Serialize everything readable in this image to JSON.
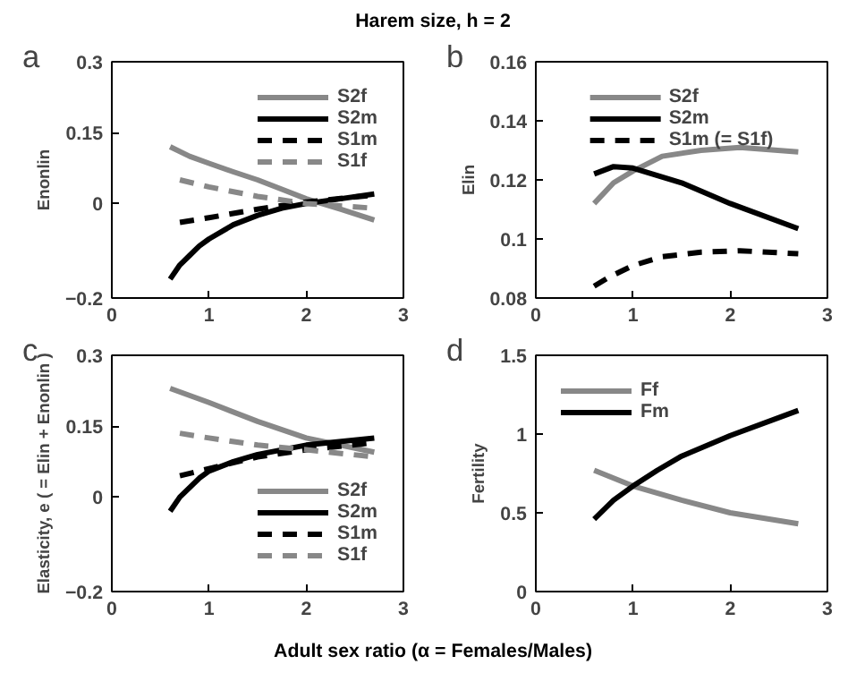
{
  "chart_data": [
    {
      "type": "line",
      "title": "Harem size, h = 2",
      "ylabel": "Enonlin",
      "annotations": [
        "a"
      ],
      "xlim": [
        0,
        3
      ],
      "xticks": [
        0,
        1,
        2,
        3
      ],
      "ylim": [
        -0.2,
        0.3
      ],
      "yticks": [
        -0.2,
        0,
        0.15,
        0.3
      ],
      "grid": false,
      "legend": "top right",
      "series": [
        {
          "name": "S2f",
          "color": "#888888",
          "x": [
            0.6,
            0.8,
            1,
            1.25,
            1.5,
            1.75,
            2,
            2.35,
            2.7
          ],
          "values": [
            0.12,
            0.1,
            0.085,
            0.067,
            0.05,
            0.03,
            0.01,
            -0.012,
            -0.035
          ]
        },
        {
          "name": "S2m",
          "color": "#000000",
          "x": [
            0.6,
            0.7,
            0.8,
            0.9,
            1,
            1.25,
            1.5,
            1.75,
            2,
            2.35,
            2.7
          ],
          "values": [
            -0.16,
            -0.13,
            -0.11,
            -0.09,
            -0.075,
            -0.045,
            -0.025,
            -0.01,
            0.0,
            0.01,
            0.02
          ]
        },
        {
          "name": "S1m",
          "color": "#000000",
          "line_style": "dashed",
          "x": [
            0.7,
            1,
            1.5,
            2,
            2.7
          ],
          "values": [
            -0.04,
            -0.03,
            -0.012,
            0.003,
            0.018
          ]
        },
        {
          "name": "S1f",
          "color": "#888888",
          "line_style": "dashed",
          "x": [
            0.7,
            1,
            1.5,
            2,
            2.7
          ],
          "values": [
            0.05,
            0.035,
            0.015,
            0.0,
            -0.01
          ]
        }
      ]
    },
    {
      "type": "line",
      "ylabel": "Elin",
      "annotations": [
        "b"
      ],
      "xlim": [
        0,
        3
      ],
      "xticks": [
        0,
        1,
        2,
        3
      ],
      "ylim": [
        0.08,
        0.16
      ],
      "yticks": [
        0.08,
        0.1,
        0.12,
        0.14,
        0.16
      ],
      "grid": false,
      "legend": "top",
      "series": [
        {
          "name": "S2f",
          "color": "#888888",
          "x": [
            0.6,
            0.8,
            1,
            1.3,
            1.7,
            2.1,
            2.7
          ],
          "values": [
            0.112,
            0.119,
            0.123,
            0.128,
            0.13,
            0.131,
            0.1295
          ]
        },
        {
          "name": "S2m",
          "color": "#000000",
          "x": [
            0.6,
            0.8,
            1,
            1.5,
            2,
            2.7
          ],
          "values": [
            0.122,
            0.1245,
            0.124,
            0.119,
            0.112,
            0.1035
          ]
        },
        {
          "name": "S1m (= S1f)",
          "color": "#000000",
          "line_style": "dashed",
          "x": [
            0.6,
            0.75,
            1,
            1.3,
            1.7,
            2.1,
            2.7
          ],
          "values": [
            0.084,
            0.087,
            0.091,
            0.094,
            0.0955,
            0.096,
            0.095
          ]
        }
      ]
    },
    {
      "type": "line",
      "ylabel": "Elasticity, e ( = Elin + Enonlin )",
      "xlabel": "Adult sex ratio (α = Females/Males)",
      "annotations": [
        "c"
      ],
      "xlim": [
        0,
        3
      ],
      "xticks": [
        0,
        1,
        2,
        3
      ],
      "ylim": [
        -0.2,
        0.3
      ],
      "yticks": [
        -0.2,
        0,
        0.15,
        0.3
      ],
      "grid": false,
      "legend": "bottom right",
      "series": [
        {
          "name": "S2f",
          "color": "#888888",
          "x": [
            0.6,
            1,
            1.5,
            2,
            2.7
          ],
          "values": [
            0.23,
            0.2,
            0.16,
            0.125,
            0.095
          ]
        },
        {
          "name": "S2m",
          "color": "#000000",
          "x": [
            0.6,
            0.7,
            0.8,
            0.9,
            1,
            1.25,
            1.5,
            2,
            2.7
          ],
          "values": [
            -0.03,
            0.0,
            0.02,
            0.04,
            0.055,
            0.075,
            0.09,
            0.11,
            0.125
          ]
        },
        {
          "name": "S1m",
          "color": "#000000",
          "line_style": "dashed",
          "x": [
            0.7,
            1,
            1.5,
            2,
            2.7
          ],
          "values": [
            0.045,
            0.06,
            0.085,
            0.1,
            0.115
          ]
        },
        {
          "name": "S1f",
          "color": "#888888",
          "line_style": "dashed",
          "x": [
            0.7,
            1,
            1.5,
            2,
            2.7
          ],
          "values": [
            0.135,
            0.125,
            0.11,
            0.1,
            0.085
          ]
        }
      ]
    },
    {
      "type": "line",
      "ylabel": "Fertility",
      "annotations": [
        "d"
      ],
      "xlim": [
        0,
        3
      ],
      "xticks": [
        0,
        1,
        2,
        3
      ],
      "ylim": [
        0,
        1.5
      ],
      "yticks": [
        0,
        0.5,
        1,
        1.5
      ],
      "grid": false,
      "legend": "top left",
      "series": [
        {
          "name": "Ff",
          "color": "#888888",
          "x": [
            0.6,
            1,
            1.5,
            2,
            2.7
          ],
          "values": [
            0.77,
            0.67,
            0.58,
            0.5,
            0.43
          ]
        },
        {
          "name": "Fm",
          "color": "#000000",
          "x": [
            0.6,
            0.8,
            1,
            1.25,
            1.5,
            2,
            2.7
          ],
          "values": [
            0.46,
            0.58,
            0.67,
            0.77,
            0.86,
            0.99,
            1.15
          ]
        }
      ]
    }
  ]
}
